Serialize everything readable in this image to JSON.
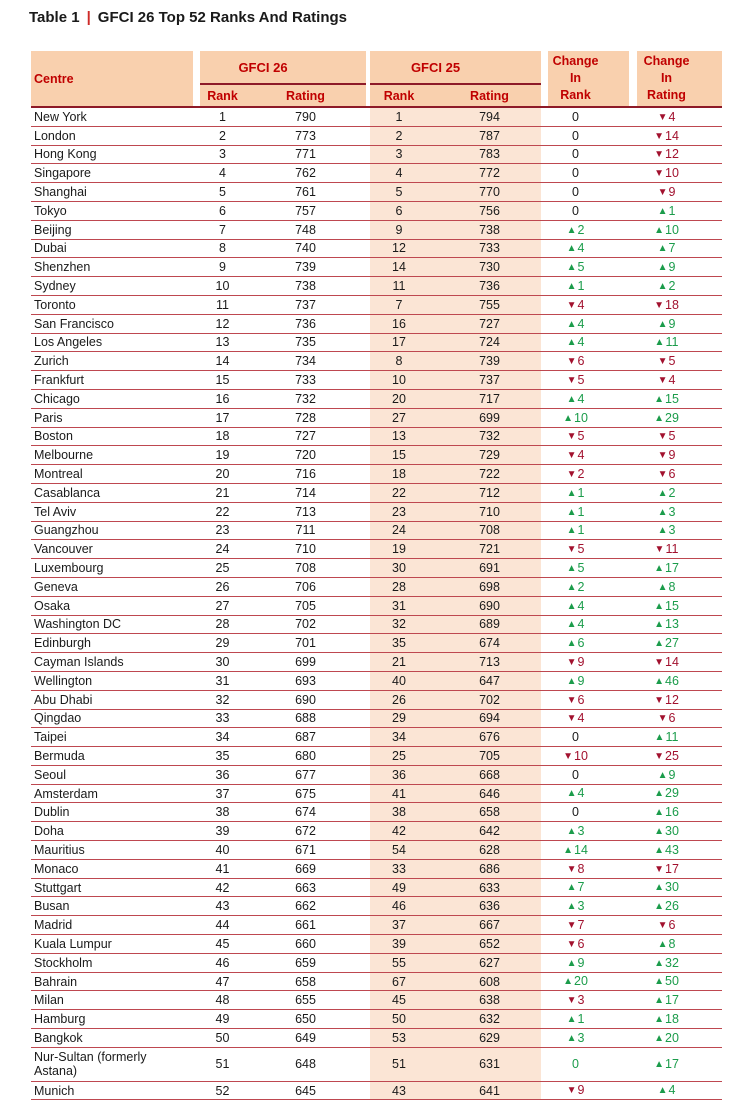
{
  "caption": {
    "label": "Table 1",
    "pipe": "|",
    "text": "GFCI 26 Top 52 Ranks And Ratings"
  },
  "header": {
    "centre": "Centre",
    "gfci26": "GFCI 26",
    "gfci25": "GFCI 25",
    "rank": "Rank",
    "rating": "Rating",
    "change_in_rank": "Change\nIn\nRank",
    "change_in_rating": "Change\nIn\nRating"
  },
  "colors": {
    "header_bg": "#f9d0ae",
    "band_bg": "#fbe5d5",
    "header_text": "#c00000",
    "header_line": "#8e1a28",
    "row_line": "#be4850",
    "up_green": "#1b9c4b",
    "down_red": "#a2112e",
    "title_pipe_red": "#ce2b28",
    "body_text": "#1a1a1a"
  },
  "rows": [
    {
      "centre": "New York",
      "gfci26": {
        "rank": "1",
        "rating": "790"
      },
      "gfci25": {
        "rank": "1",
        "rating": "794"
      },
      "change_in_rank": {
        "dir": "flat",
        "value": "0"
      },
      "change_in_rating": {
        "dir": "down",
        "value": "4"
      }
    },
    {
      "centre": "London",
      "gfci26": {
        "rank": "2",
        "rating": "773"
      },
      "gfci25": {
        "rank": "2",
        "rating": "787"
      },
      "change_in_rank": {
        "dir": "flat",
        "value": "0"
      },
      "change_in_rating": {
        "dir": "down",
        "value": "14"
      }
    },
    {
      "centre": "Hong Kong",
      "gfci26": {
        "rank": "3",
        "rating": "771"
      },
      "gfci25": {
        "rank": "3",
        "rating": "783"
      },
      "change_in_rank": {
        "dir": "flat",
        "value": "0"
      },
      "change_in_rating": {
        "dir": "down",
        "value": "12"
      }
    },
    {
      "centre": "Singapore",
      "gfci26": {
        "rank": "4",
        "rating": "762"
      },
      "gfci25": {
        "rank": "4",
        "rating": "772"
      },
      "change_in_rank": {
        "dir": "flat",
        "value": "0"
      },
      "change_in_rating": {
        "dir": "down",
        "value": "10"
      }
    },
    {
      "centre": "Shanghai",
      "gfci26": {
        "rank": "5",
        "rating": "761"
      },
      "gfci25": {
        "rank": "5",
        "rating": "770"
      },
      "change_in_rank": {
        "dir": "flat",
        "value": "0"
      },
      "change_in_rating": {
        "dir": "down",
        "value": "9"
      }
    },
    {
      "centre": "Tokyo",
      "gfci26": {
        "rank": "6",
        "rating": "757"
      },
      "gfci25": {
        "rank": "6",
        "rating": "756"
      },
      "change_in_rank": {
        "dir": "flat",
        "value": "0"
      },
      "change_in_rating": {
        "dir": "up",
        "value": "1"
      }
    },
    {
      "centre": "Beijing",
      "gfci26": {
        "rank": "7",
        "rating": "748"
      },
      "gfci25": {
        "rank": "9",
        "rating": "738"
      },
      "change_in_rank": {
        "dir": "up",
        "value": "2"
      },
      "change_in_rating": {
        "dir": "up",
        "value": "10"
      }
    },
    {
      "centre": "Dubai",
      "gfci26": {
        "rank": "8",
        "rating": "740"
      },
      "gfci25": {
        "rank": "12",
        "rating": "733"
      },
      "change_in_rank": {
        "dir": "up",
        "value": "4"
      },
      "change_in_rating": {
        "dir": "up",
        "value": "7"
      }
    },
    {
      "centre": "Shenzhen",
      "gfci26": {
        "rank": "9",
        "rating": "739"
      },
      "gfci25": {
        "rank": "14",
        "rating": "730"
      },
      "change_in_rank": {
        "dir": "up",
        "value": "5"
      },
      "change_in_rating": {
        "dir": "up",
        "value": "9"
      }
    },
    {
      "centre": "Sydney",
      "gfci26": {
        "rank": "10",
        "rating": "738"
      },
      "gfci25": {
        "rank": "11",
        "rating": "736"
      },
      "change_in_rank": {
        "dir": "up",
        "value": "1"
      },
      "change_in_rating": {
        "dir": "up",
        "value": "2"
      }
    },
    {
      "centre": "Toronto",
      "gfci26": {
        "rank": "11",
        "rating": "737"
      },
      "gfci25": {
        "rank": "7",
        "rating": "755"
      },
      "change_in_rank": {
        "dir": "down",
        "value": "4"
      },
      "change_in_rating": {
        "dir": "down",
        "value": "18"
      }
    },
    {
      "centre": "San Francisco",
      "gfci26": {
        "rank": "12",
        "rating": "736"
      },
      "gfci25": {
        "rank": "16",
        "rating": "727"
      },
      "change_in_rank": {
        "dir": "up",
        "value": "4"
      },
      "change_in_rating": {
        "dir": "up",
        "value": "9"
      }
    },
    {
      "centre": "Los Angeles",
      "gfci26": {
        "rank": "13",
        "rating": "735"
      },
      "gfci25": {
        "rank": "17",
        "rating": "724"
      },
      "change_in_rank": {
        "dir": "up",
        "value": "4"
      },
      "change_in_rating": {
        "dir": "up",
        "value": "11"
      }
    },
    {
      "centre": "Zurich",
      "gfci26": {
        "rank": "14",
        "rating": "734"
      },
      "gfci25": {
        "rank": "8",
        "rating": "739"
      },
      "change_in_rank": {
        "dir": "down",
        "value": "6"
      },
      "change_in_rating": {
        "dir": "down",
        "value": "5"
      }
    },
    {
      "centre": "Frankfurt",
      "gfci26": {
        "rank": "15",
        "rating": "733"
      },
      "gfci25": {
        "rank": "10",
        "rating": "737"
      },
      "change_in_rank": {
        "dir": "down",
        "value": "5"
      },
      "change_in_rating": {
        "dir": "down",
        "value": "4"
      }
    },
    {
      "centre": "Chicago",
      "gfci26": {
        "rank": "16",
        "rating": "732"
      },
      "gfci25": {
        "rank": "20",
        "rating": "717"
      },
      "change_in_rank": {
        "dir": "up",
        "value": "4"
      },
      "change_in_rating": {
        "dir": "up",
        "value": "15"
      }
    },
    {
      "centre": "Paris",
      "gfci26": {
        "rank": "17",
        "rating": "728"
      },
      "gfci25": {
        "rank": "27",
        "rating": "699"
      },
      "change_in_rank": {
        "dir": "up",
        "value": "10"
      },
      "change_in_rating": {
        "dir": "up",
        "value": "29"
      }
    },
    {
      "centre": "Boston",
      "gfci26": {
        "rank": "18",
        "rating": "727"
      },
      "gfci25": {
        "rank": "13",
        "rating": "732"
      },
      "change_in_rank": {
        "dir": "down",
        "value": "5"
      },
      "change_in_rating": {
        "dir": "down",
        "value": "5"
      }
    },
    {
      "centre": "Melbourne",
      "gfci26": {
        "rank": "19",
        "rating": "720"
      },
      "gfci25": {
        "rank": "15",
        "rating": "729"
      },
      "change_in_rank": {
        "dir": "down",
        "value": "4"
      },
      "change_in_rating": {
        "dir": "down",
        "value": "9"
      }
    },
    {
      "centre": "Montreal",
      "gfci26": {
        "rank": "20",
        "rating": "716"
      },
      "gfci25": {
        "rank": "18",
        "rating": "722"
      },
      "change_in_rank": {
        "dir": "down",
        "value": "2"
      },
      "change_in_rating": {
        "dir": "down",
        "value": "6"
      }
    },
    {
      "centre": "Casablanca",
      "gfci26": {
        "rank": "21",
        "rating": "714"
      },
      "gfci25": {
        "rank": "22",
        "rating": "712"
      },
      "change_in_rank": {
        "dir": "up",
        "value": "1"
      },
      "change_in_rating": {
        "dir": "up",
        "value": "2"
      }
    },
    {
      "centre": "Tel Aviv",
      "gfci26": {
        "rank": "22",
        "rating": "713"
      },
      "gfci25": {
        "rank": "23",
        "rating": "710"
      },
      "change_in_rank": {
        "dir": "up",
        "value": "1"
      },
      "change_in_rating": {
        "dir": "up",
        "value": "3"
      }
    },
    {
      "centre": "Guangzhou",
      "gfci26": {
        "rank": "23",
        "rating": "711"
      },
      "gfci25": {
        "rank": "24",
        "rating": "708"
      },
      "change_in_rank": {
        "dir": "up",
        "value": "1"
      },
      "change_in_rating": {
        "dir": "up",
        "value": "3"
      }
    },
    {
      "centre": "Vancouver",
      "gfci26": {
        "rank": "24",
        "rating": "710"
      },
      "gfci25": {
        "rank": "19",
        "rating": "721"
      },
      "change_in_rank": {
        "dir": "down",
        "value": "5"
      },
      "change_in_rating": {
        "dir": "down",
        "value": "11"
      }
    },
    {
      "centre": "Luxembourg",
      "gfci26": {
        "rank": "25",
        "rating": "708"
      },
      "gfci25": {
        "rank": "30",
        "rating": "691"
      },
      "change_in_rank": {
        "dir": "up",
        "value": "5"
      },
      "change_in_rating": {
        "dir": "up",
        "value": "17"
      }
    },
    {
      "centre": "Geneva",
      "gfci26": {
        "rank": "26",
        "rating": "706"
      },
      "gfci25": {
        "rank": "28",
        "rating": "698"
      },
      "change_in_rank": {
        "dir": "up",
        "value": "2"
      },
      "change_in_rating": {
        "dir": "up",
        "value": "8"
      }
    },
    {
      "centre": "Osaka",
      "gfci26": {
        "rank": "27",
        "rating": "705"
      },
      "gfci25": {
        "rank": "31",
        "rating": "690"
      },
      "change_in_rank": {
        "dir": "up",
        "value": "4"
      },
      "change_in_rating": {
        "dir": "up",
        "value": "15"
      }
    },
    {
      "centre": "Washington DC",
      "gfci26": {
        "rank": "28",
        "rating": "702"
      },
      "gfci25": {
        "rank": "32",
        "rating": "689"
      },
      "change_in_rank": {
        "dir": "up",
        "value": "4"
      },
      "change_in_rating": {
        "dir": "up",
        "value": "13"
      }
    },
    {
      "centre": "Edinburgh",
      "gfci26": {
        "rank": "29",
        "rating": "701"
      },
      "gfci25": {
        "rank": "35",
        "rating": "674"
      },
      "change_in_rank": {
        "dir": "up",
        "value": "6"
      },
      "change_in_rating": {
        "dir": "up",
        "value": "27"
      }
    },
    {
      "centre": "Cayman Islands",
      "gfci26": {
        "rank": "30",
        "rating": "699"
      },
      "gfci25": {
        "rank": "21",
        "rating": "713"
      },
      "change_in_rank": {
        "dir": "down",
        "value": "9"
      },
      "change_in_rating": {
        "dir": "down",
        "value": "14"
      }
    },
    {
      "centre": "Wellington",
      "gfci26": {
        "rank": "31",
        "rating": "693"
      },
      "gfci25": {
        "rank": "40",
        "rating": "647"
      },
      "change_in_rank": {
        "dir": "up",
        "value": "9"
      },
      "change_in_rating": {
        "dir": "up",
        "value": "46"
      }
    },
    {
      "centre": "Abu Dhabi",
      "gfci26": {
        "rank": "32",
        "rating": "690"
      },
      "gfci25": {
        "rank": "26",
        "rating": "702"
      },
      "change_in_rank": {
        "dir": "down",
        "value": "6"
      },
      "change_in_rating": {
        "dir": "down",
        "value": "12"
      }
    },
    {
      "centre": "Qingdao",
      "gfci26": {
        "rank": "33",
        "rating": "688"
      },
      "gfci25": {
        "rank": "29",
        "rating": "694"
      },
      "change_in_rank": {
        "dir": "down",
        "value": "4"
      },
      "change_in_rating": {
        "dir": "down",
        "value": "6"
      }
    },
    {
      "centre": "Taipei",
      "gfci26": {
        "rank": "34",
        "rating": "687"
      },
      "gfci25": {
        "rank": "34",
        "rating": "676"
      },
      "change_in_rank": {
        "dir": "flat",
        "value": "0"
      },
      "change_in_rating": {
        "dir": "up",
        "value": "11"
      }
    },
    {
      "centre": "Bermuda",
      "gfci26": {
        "rank": "35",
        "rating": "680"
      },
      "gfci25": {
        "rank": "25",
        "rating": "705"
      },
      "change_in_rank": {
        "dir": "down",
        "value": "10"
      },
      "change_in_rating": {
        "dir": "down",
        "value": "25"
      }
    },
    {
      "centre": "Seoul",
      "gfci26": {
        "rank": "36",
        "rating": "677"
      },
      "gfci25": {
        "rank": "36",
        "rating": "668"
      },
      "change_in_rank": {
        "dir": "flat",
        "value": "0"
      },
      "change_in_rating": {
        "dir": "up",
        "value": "9"
      }
    },
    {
      "centre": "Amsterdam",
      "gfci26": {
        "rank": "37",
        "rating": "675"
      },
      "gfci25": {
        "rank": "41",
        "rating": "646"
      },
      "change_in_rank": {
        "dir": "up",
        "value": "4"
      },
      "change_in_rating": {
        "dir": "up",
        "value": "29"
      }
    },
    {
      "centre": "Dublin",
      "gfci26": {
        "rank": "38",
        "rating": "674"
      },
      "gfci25": {
        "rank": "38",
        "rating": "658"
      },
      "change_in_rank": {
        "dir": "flat",
        "value": "0"
      },
      "change_in_rating": {
        "dir": "up",
        "value": "16"
      }
    },
    {
      "centre": "Doha",
      "gfci26": {
        "rank": "39",
        "rating": "672"
      },
      "gfci25": {
        "rank": "42",
        "rating": "642"
      },
      "change_in_rank": {
        "dir": "up",
        "value": "3"
      },
      "change_in_rating": {
        "dir": "up",
        "value": "30"
      }
    },
    {
      "centre": "Mauritius",
      "gfci26": {
        "rank": "40",
        "rating": "671"
      },
      "gfci25": {
        "rank": "54",
        "rating": "628"
      },
      "change_in_rank": {
        "dir": "up",
        "value": "14"
      },
      "change_in_rating": {
        "dir": "up",
        "value": "43"
      }
    },
    {
      "centre": "Monaco",
      "gfci26": {
        "rank": "41",
        "rating": "669"
      },
      "gfci25": {
        "rank": "33",
        "rating": "686"
      },
      "change_in_rank": {
        "dir": "down",
        "value": "8"
      },
      "change_in_rating": {
        "dir": "down",
        "value": "17"
      }
    },
    {
      "centre": "Stuttgart",
      "gfci26": {
        "rank": "42",
        "rating": "663"
      },
      "gfci25": {
        "rank": "49",
        "rating": "633"
      },
      "change_in_rank": {
        "dir": "up",
        "value": "7"
      },
      "change_in_rating": {
        "dir": "up",
        "value": "30"
      }
    },
    {
      "centre": "Busan",
      "gfci26": {
        "rank": "43",
        "rating": "662"
      },
      "gfci25": {
        "rank": "46",
        "rating": "636"
      },
      "change_in_rank": {
        "dir": "up",
        "value": "3"
      },
      "change_in_rating": {
        "dir": "up",
        "value": "26"
      }
    },
    {
      "centre": "Madrid",
      "gfci26": {
        "rank": "44",
        "rating": "661"
      },
      "gfci25": {
        "rank": "37",
        "rating": "667"
      },
      "change_in_rank": {
        "dir": "down",
        "value": "7"
      },
      "change_in_rating": {
        "dir": "down",
        "value": "6"
      }
    },
    {
      "centre": "Kuala Lumpur",
      "gfci26": {
        "rank": "45",
        "rating": "660"
      },
      "gfci25": {
        "rank": "39",
        "rating": "652"
      },
      "change_in_rank": {
        "dir": "down",
        "value": "6"
      },
      "change_in_rating": {
        "dir": "up",
        "value": "8"
      }
    },
    {
      "centre": "Stockholm",
      "gfci26": {
        "rank": "46",
        "rating": "659"
      },
      "gfci25": {
        "rank": "55",
        "rating": "627"
      },
      "change_in_rank": {
        "dir": "up",
        "value": "9"
      },
      "change_in_rating": {
        "dir": "up",
        "value": "32"
      }
    },
    {
      "centre": "Bahrain",
      "gfci26": {
        "rank": "47",
        "rating": "658"
      },
      "gfci25": {
        "rank": "67",
        "rating": "608"
      },
      "change_in_rank": {
        "dir": "up",
        "value": "20"
      },
      "change_in_rating": {
        "dir": "up",
        "value": "50"
      }
    },
    {
      "centre": "Milan",
      "gfci26": {
        "rank": "48",
        "rating": "655"
      },
      "gfci25": {
        "rank": "45",
        "rating": "638"
      },
      "change_in_rank": {
        "dir": "down",
        "value": "3"
      },
      "change_in_rating": {
        "dir": "up",
        "value": "17"
      }
    },
    {
      "centre": "Hamburg",
      "gfci26": {
        "rank": "49",
        "rating": "650"
      },
      "gfci25": {
        "rank": "50",
        "rating": "632"
      },
      "change_in_rank": {
        "dir": "up",
        "value": "1"
      },
      "change_in_rating": {
        "dir": "up",
        "value": "18"
      }
    },
    {
      "centre": "Bangkok",
      "gfci26": {
        "rank": "50",
        "rating": "649"
      },
      "gfci25": {
        "rank": "53",
        "rating": "629"
      },
      "change_in_rank": {
        "dir": "up",
        "value": "3"
      },
      "change_in_rating": {
        "dir": "up",
        "value": "20"
      }
    },
    {
      "centre": "Nur-Sultan (formerly Astana)",
      "tall": true,
      "gfci26": {
        "rank": "51",
        "rating": "648"
      },
      "gfci25": {
        "rank": "51",
        "rating": "631"
      },
      "change_in_rank": {
        "dir": "flat_up",
        "value": "0"
      },
      "change_in_rating": {
        "dir": "up",
        "value": "17"
      }
    },
    {
      "centre": "Munich",
      "gfci26": {
        "rank": "52",
        "rating": "645"
      },
      "gfci25": {
        "rank": "43",
        "rating": "641"
      },
      "change_in_rank": {
        "dir": "down",
        "value": "9"
      },
      "change_in_rating": {
        "dir": "up",
        "value": "4"
      }
    }
  ]
}
